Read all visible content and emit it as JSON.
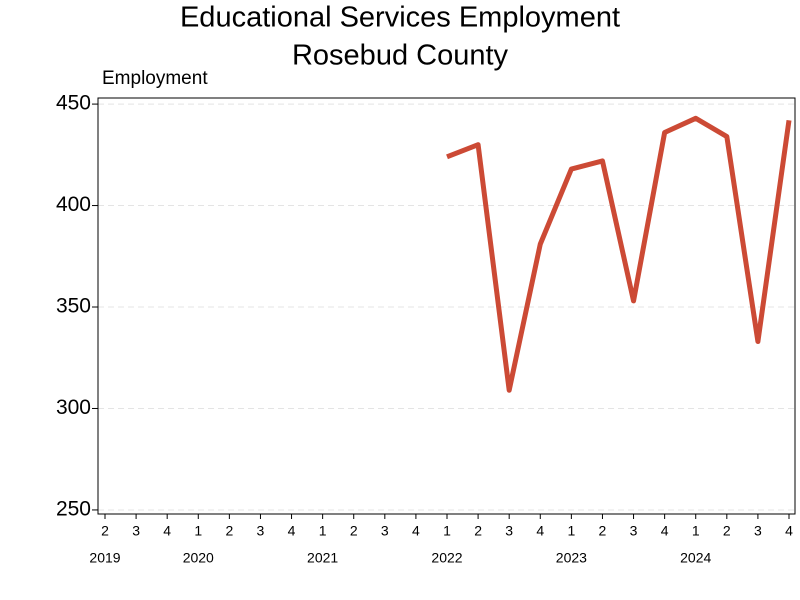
{
  "chart_data": {
    "type": "line",
    "title": "Educational Services Employment",
    "subtitle": "Rosebud County",
    "y_label": "Employment",
    "categories": [
      "2",
      "3",
      "4",
      "1",
      "2",
      "3",
      "4",
      "1",
      "2",
      "3",
      "4",
      "1",
      "2",
      "3",
      "4",
      "1",
      "2",
      "3",
      "4",
      "1",
      "2",
      "3",
      "4"
    ],
    "year_labels": [
      "2019",
      null,
      null,
      "2020",
      null,
      null,
      null,
      "2021",
      null,
      null,
      null,
      "2022",
      null,
      null,
      null,
      "2023",
      null,
      null,
      null,
      "2024",
      null,
      null,
      null
    ],
    "series": [
      {
        "name": "Employment",
        "color": "#cc4a35",
        "values": [
          null,
          null,
          null,
          null,
          null,
          null,
          null,
          null,
          null,
          null,
          null,
          424,
          430,
          309,
          381,
          418,
          422,
          353,
          436,
          443,
          434,
          333,
          442
        ]
      }
    ],
    "ylim": [
      248,
      453
    ],
    "yticks": [
      250,
      300,
      350,
      400,
      450
    ],
    "grid": true
  }
}
